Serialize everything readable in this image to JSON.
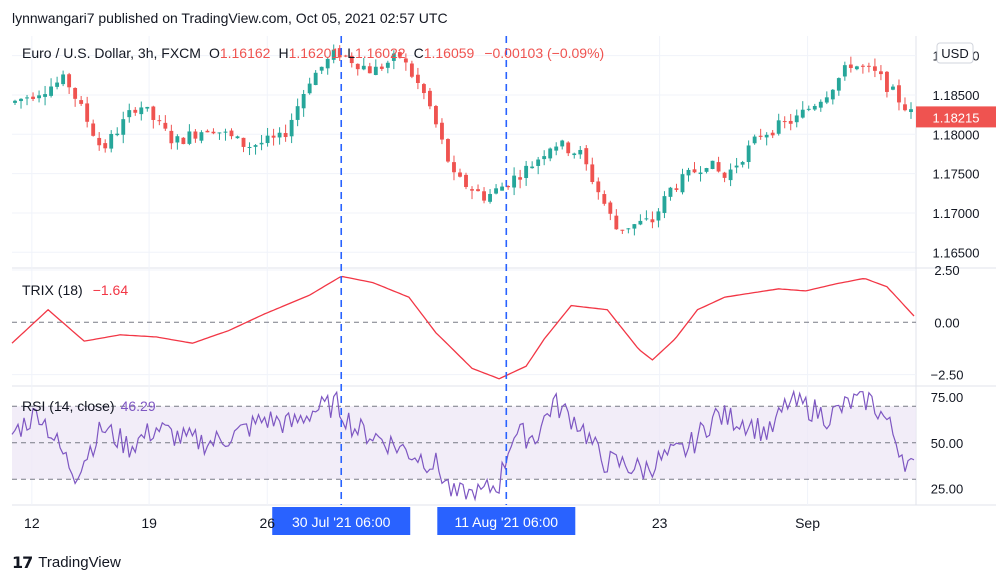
{
  "header": {
    "publisher_line": "lynnwangari7 published on TradingView.com, Oct 05, 2021 02:57 UTC"
  },
  "branding": {
    "logo_text": "TradingView",
    "logo_mark": "17"
  },
  "colors": {
    "up": "#26a69a",
    "down": "#ef5350",
    "trix": "#f23645",
    "rsi": "#7e57c2",
    "rsi_band": "#ede7f6",
    "marker": "#2962ff",
    "grid": "#f0f3fa",
    "text": "#131722"
  },
  "chart_data": [
    {
      "type": "candlestick",
      "title": "Euro / U.S. Dollar, 3h, FXCM",
      "ohlc_labels": {
        "o_label": "O",
        "o_value": "1.16162",
        "h_label": "H",
        "h_value": "1.16201",
        "l_label": "L",
        "l_value": "1.16022",
        "c_label": "C",
        "c_value": "1.16059",
        "change": "−0.00103 (−0.09%)"
      },
      "currency": "USD",
      "last_price": "1.18215",
      "ylim": [
        1.163,
        1.1925
      ],
      "y_ticks": [
        1.19,
        1.185,
        1.18,
        1.175,
        1.17,
        1.165
      ],
      "y_tick_labels": [
        "1.19000",
        "1.18500",
        "1.18000",
        "1.17500",
        "1.17000",
        "1.16500"
      ],
      "path": [
        [
          0,
          1.184
        ],
        [
          0.06,
          1.187
        ],
        [
          0.1,
          1.178
        ],
        [
          0.14,
          1.184
        ],
        [
          0.18,
          1.179
        ],
        [
          0.22,
          1.181
        ],
        [
          0.26,
          1.1785
        ],
        [
          0.3,
          1.1795
        ],
        [
          0.33,
          1.187
        ],
        [
          0.36,
          1.1905
        ],
        [
          0.4,
          1.188
        ],
        [
          0.43,
          1.19
        ],
        [
          0.46,
          1.1845
        ],
        [
          0.49,
          1.1745
        ],
        [
          0.525,
          1.172
        ],
        [
          0.545,
          1.1735
        ],
        [
          0.575,
          1.176
        ],
        [
          0.6,
          1.179
        ],
        [
          0.63,
          1.1775
        ],
        [
          0.67,
          1.168
        ],
        [
          0.71,
          1.169
        ],
        [
          0.73,
          1.173
        ],
        [
          0.77,
          1.1765
        ],
        [
          0.79,
          1.1745
        ],
        [
          0.83,
          1.18
        ],
        [
          0.87,
          1.182
        ],
        [
          0.905,
          1.1855
        ],
        [
          0.93,
          1.189
        ],
        [
          0.96,
          1.1875
        ],
        [
          1,
          1.1822
        ]
      ],
      "candle_count": 150
    },
    {
      "type": "line",
      "title": "TRIX (18)",
      "value_label": "−1.64",
      "ylim": [
        -2.95,
        2.5
      ],
      "y_ticks": [
        2.5,
        0.0,
        -2.5
      ],
      "y_tick_labels": [
        "2.50",
        "0.00",
        "−2.50"
      ],
      "zero_line": 0.0,
      "values": [
        [
          0,
          -1.0
        ],
        [
          0.04,
          0.6
        ],
        [
          0.08,
          -0.9
        ],
        [
          0.12,
          -0.6
        ],
        [
          0.16,
          -0.7
        ],
        [
          0.2,
          -1.0
        ],
        [
          0.24,
          -0.4
        ],
        [
          0.28,
          0.4
        ],
        [
          0.33,
          1.3
        ],
        [
          0.365,
          2.2
        ],
        [
          0.4,
          1.9
        ],
        [
          0.44,
          1.2
        ],
        [
          0.47,
          -0.5
        ],
        [
          0.51,
          -2.2
        ],
        [
          0.54,
          -2.7
        ],
        [
          0.57,
          -2.1
        ],
        [
          0.59,
          -0.8
        ],
        [
          0.62,
          0.8
        ],
        [
          0.66,
          0.6
        ],
        [
          0.695,
          -1.3
        ],
        [
          0.71,
          -1.8
        ],
        [
          0.735,
          -0.8
        ],
        [
          0.76,
          0.6
        ],
        [
          0.79,
          1.2
        ],
        [
          0.82,
          1.4
        ],
        [
          0.85,
          1.6
        ],
        [
          0.88,
          1.5
        ],
        [
          0.915,
          1.85
        ],
        [
          0.945,
          2.1
        ],
        [
          0.97,
          1.7
        ],
        [
          1,
          0.3
        ]
      ]
    },
    {
      "type": "line",
      "title": "RSI (14, close)",
      "value_label": "46.29",
      "ylim": [
        17,
        80
      ],
      "y_ticks": [
        75,
        50,
        25
      ],
      "y_tick_labels": [
        "75.00",
        "50.00",
        "25.00"
      ],
      "bands": [
        70,
        30
      ],
      "midline": 50,
      "values": [
        [
          0,
          55
        ],
        [
          0.03,
          67
        ],
        [
          0.055,
          45
        ],
        [
          0.07,
          33
        ],
        [
          0.1,
          58
        ],
        [
          0.13,
          48
        ],
        [
          0.16,
          58
        ],
        [
          0.19,
          52
        ],
        [
          0.22,
          50
        ],
        [
          0.25,
          55
        ],
        [
          0.28,
          63
        ],
        [
          0.31,
          60
        ],
        [
          0.335,
          68
        ],
        [
          0.36,
          71
        ],
        [
          0.38,
          58
        ],
        [
          0.41,
          52
        ],
        [
          0.44,
          45
        ],
        [
          0.47,
          38
        ],
        [
          0.49,
          21
        ],
        [
          0.52,
          22
        ],
        [
          0.54,
          28
        ],
        [
          0.555,
          55
        ],
        [
          0.58,
          53
        ],
        [
          0.6,
          72
        ],
        [
          0.63,
          60
        ],
        [
          0.655,
          40
        ],
        [
          0.68,
          38
        ],
        [
          0.7,
          35
        ],
        [
          0.72,
          41
        ],
        [
          0.75,
          47
        ],
        [
          0.78,
          65
        ],
        [
          0.81,
          62
        ],
        [
          0.84,
          55
        ],
        [
          0.86,
          72
        ],
        [
          0.88,
          70
        ],
        [
          0.905,
          64
        ],
        [
          0.93,
          72
        ],
        [
          0.95,
          74
        ],
        [
          0.97,
          62
        ],
        [
          0.99,
          41
        ],
        [
          1,
          35
        ]
      ]
    }
  ],
  "x_axis": {
    "ticks": [
      {
        "label": "12",
        "pos": 0.022
      },
      {
        "label": "19",
        "pos": 0.152
      },
      {
        "label": "26",
        "pos": 0.283
      },
      {
        "label": "23",
        "pos": 0.718
      },
      {
        "label": "Sep",
        "pos": 0.882
      }
    ],
    "markers": [
      {
        "label": "30 Jul '21   06:00",
        "pos": 0.365
      },
      {
        "label": "11 Aug '21   06:00",
        "pos": 0.548
      }
    ]
  }
}
